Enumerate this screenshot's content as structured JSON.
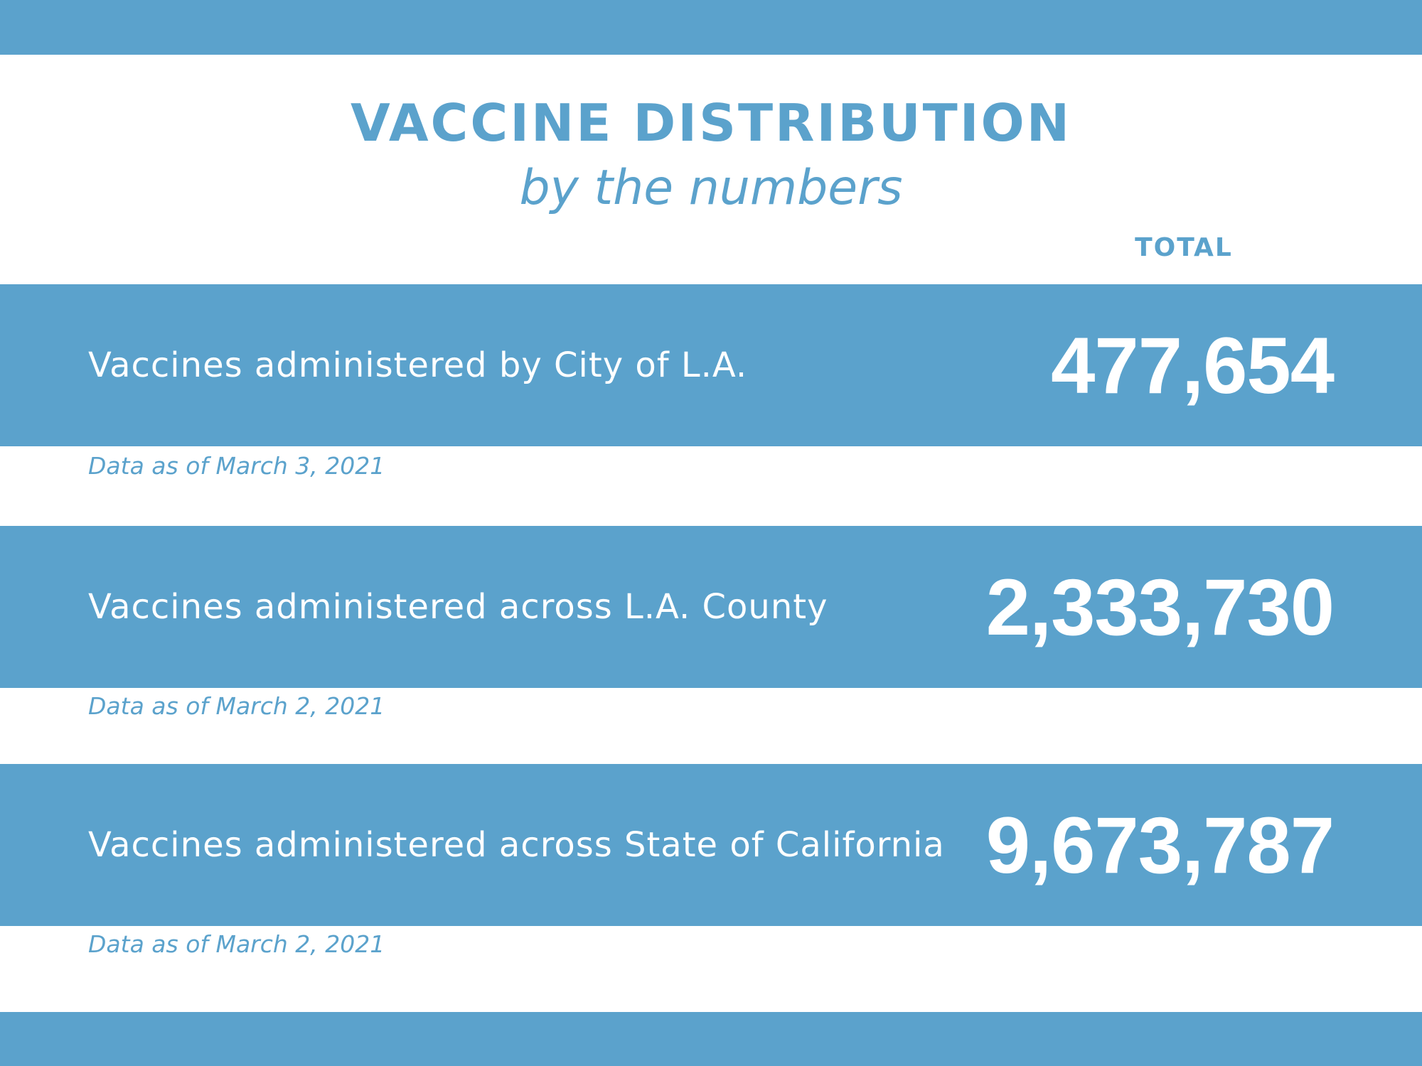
{
  "header": {
    "title": "VACCINE DISTRIBUTION",
    "subtitle": "by the numbers",
    "column_label": "TOTAL"
  },
  "stats": [
    {
      "label": "Vaccines administered by City of L.A.",
      "value": "477,654",
      "note": "Data as of March 3, 2021"
    },
    {
      "label": "Vaccines administered across L.A. County",
      "value": "2,333,730",
      "note": "Data as of March 2, 2021"
    },
    {
      "label": "Vaccines administered across State of California",
      "value": "9,673,787",
      "note": "Data as of March 2, 2021"
    }
  ],
  "colors": {
    "accent": "#5ba2cc",
    "background": "#ffffff",
    "text_on_accent": "#ffffff"
  }
}
